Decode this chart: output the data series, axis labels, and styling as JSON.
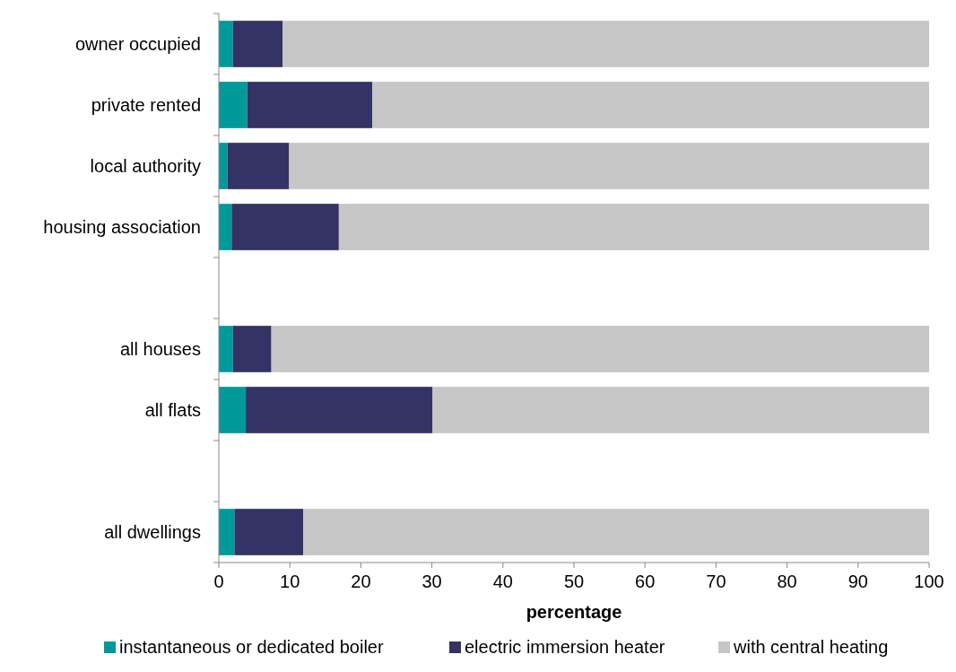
{
  "chart_data": {
    "type": "bar",
    "orientation": "horizontal",
    "stacked": true,
    "xlabel": "percentage",
    "categories": [
      "owner occupied",
      "private rented",
      "local authority",
      "housing association",
      null,
      "all houses",
      "all flats",
      null,
      "all dwellings"
    ],
    "series": [
      {
        "name": "instantaneous or dedicated boiler",
        "color": "#009999",
        "values": [
          2.0,
          4.0,
          1.2,
          1.8,
          null,
          2.0,
          3.8,
          null,
          2.2
        ]
      },
      {
        "name": "electric immersion heater",
        "color": "#333366",
        "values": [
          7.0,
          17.6,
          8.7,
          15.1,
          null,
          5.4,
          26.3,
          null,
          9.7
        ]
      },
      {
        "name": "with central heating",
        "color": "#c6c6c6",
        "values": [
          91.0,
          78.4,
          90.1,
          83.1,
          null,
          92.6,
          69.9,
          null,
          88.1
        ]
      }
    ],
    "xlim": [
      0,
      100
    ],
    "xticks": [
      0,
      10,
      20,
      30,
      40,
      50,
      60,
      70,
      80,
      90,
      100
    ],
    "grid": false,
    "legend": "bottom"
  }
}
